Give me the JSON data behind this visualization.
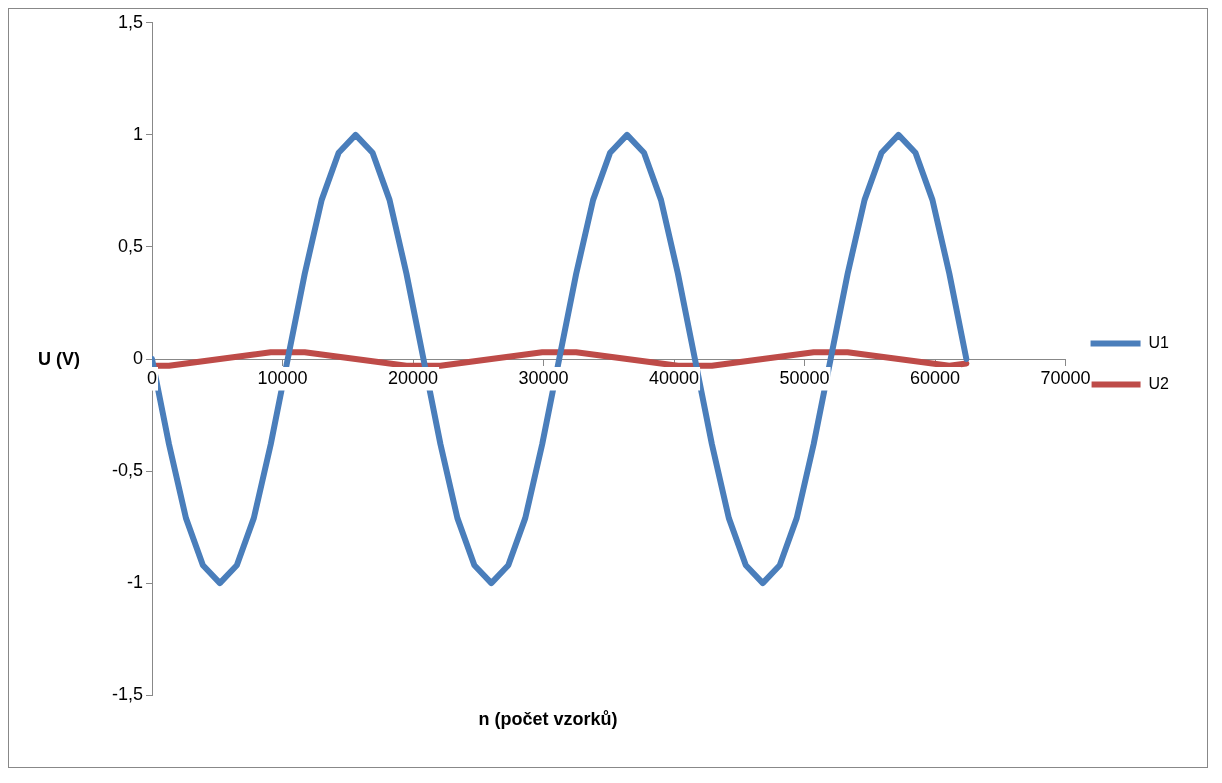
{
  "chart_data": {
    "type": "line",
    "xlabel": "n (počet vzorků)",
    "ylabel": "U (V)",
    "x": [
      0,
      1300,
      2600,
      3900,
      5200,
      6500,
      7800,
      9100,
      10400,
      11700,
      13000,
      14300,
      15600,
      16900,
      18200,
      19500,
      20800,
      22100,
      23400,
      24700,
      26000,
      27300,
      28600,
      29900,
      31200,
      32500,
      33800,
      35100,
      36400,
      37700,
      39000,
      40300,
      41600,
      42900,
      44200,
      45500,
      46800,
      48100,
      49400,
      50700,
      52000,
      53300,
      54600,
      55900,
      57200,
      58500,
      59800,
      61100,
      62400
    ],
    "series": [
      {
        "name": "U1",
        "color": "#4a7ebb",
        "values": [
          0,
          -0.38,
          -0.71,
          -0.92,
          -1,
          -0.92,
          -0.71,
          -0.38,
          0,
          0.38,
          0.71,
          0.92,
          1,
          0.92,
          0.71,
          0.38,
          0,
          -0.38,
          -0.71,
          -0.92,
          -1,
          -0.92,
          -0.71,
          -0.38,
          0,
          0.38,
          0.71,
          0.92,
          1,
          0.92,
          0.71,
          0.38,
          0,
          -0.38,
          -0.71,
          -0.92,
          -1,
          -0.92,
          -0.71,
          -0.38,
          0,
          0.38,
          0.71,
          0.92,
          1,
          0.92,
          0.71,
          0.38,
          0
        ]
      },
      {
        "name": "U2",
        "color": "#be4b48",
        "values": [
          -0.03,
          -0.03,
          -0.02,
          -0.01,
          0,
          0.01,
          0.02,
          0.03,
          0.03,
          0.03,
          0.02,
          0.01,
          0,
          -0.01,
          -0.02,
          -0.03,
          -0.03,
          -0.03,
          -0.02,
          -0.01,
          0,
          0.01,
          0.02,
          0.03,
          0.03,
          0.03,
          0.02,
          0.01,
          0,
          -0.01,
          -0.02,
          -0.03,
          -0.03,
          -0.03,
          -0.02,
          -0.01,
          0,
          0.01,
          0.02,
          0.03,
          0.03,
          0.03,
          0.02,
          0.01,
          0,
          -0.01,
          -0.02,
          -0.03,
          -0.02
        ]
      }
    ],
    "xlim": [
      0,
      70000
    ],
    "xticks": [
      0,
      10000,
      20000,
      30000,
      40000,
      50000,
      60000,
      70000
    ],
    "ylim": [
      -1.5,
      1.5
    ],
    "yticks": [
      {
        "value": -1.5,
        "label": "-1,5"
      },
      -1,
      {
        "value": -0.5,
        "label": "-0,5"
      },
      0,
      {
        "value": 0.5,
        "label": "0,5"
      },
      1,
      {
        "value": 1.5,
        "label": "1,5"
      }
    ],
    "grid": false,
    "legend": "right",
    "marker": "none",
    "line_style": "solid"
  }
}
